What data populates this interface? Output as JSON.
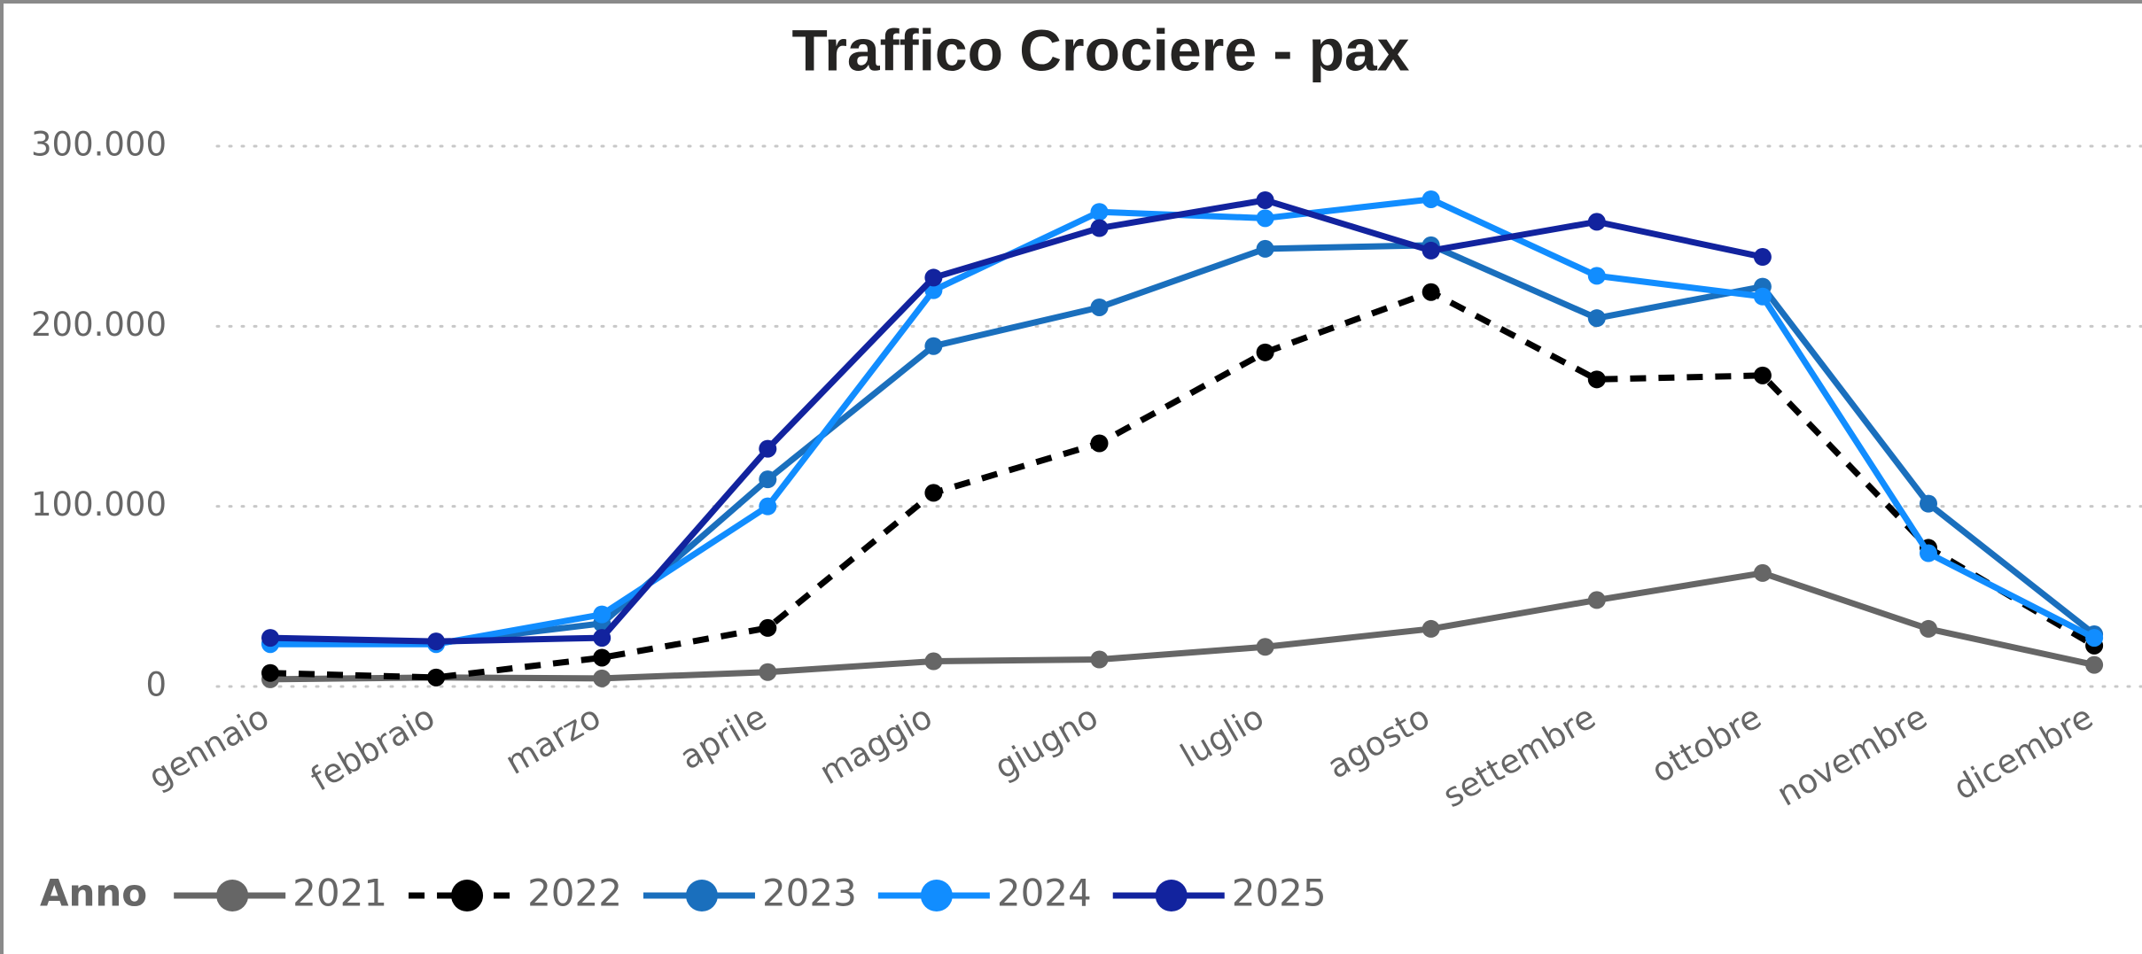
{
  "chart_data": {
    "type": "line",
    "title": "Traffico Crociere - pax",
    "categories": [
      "gennaio",
      "febbraio",
      "marzo",
      "aprile",
      "maggio",
      "giugno",
      "luglio",
      "agosto",
      "settembre",
      "ottobre",
      "novembre",
      "dicembre"
    ],
    "legend_title": "Anno",
    "legend": "bottom-left",
    "grid": true,
    "ylim": [
      0,
      300000
    ],
    "yticks": [
      0,
      {
        "value": 100000,
        "label": "100.000"
      },
      {
        "value": 200000,
        "label": "200.000"
      },
      {
        "value": 300000,
        "label": "300.000"
      }
    ],
    "series": [
      {
        "name": "2021",
        "color": "#666666",
        "line_style": "solid",
        "values": [
          4000,
          5000,
          4500,
          8000,
          14000,
          15000,
          22000,
          32000,
          48000,
          63000,
          32000,
          12000
        ]
      },
      {
        "name": "2022",
        "color": "#000000",
        "line_style": "dashed",
        "values": [
          7500,
          5000,
          16000,
          32500,
          107500,
          135000,
          185500,
          219000,
          170500,
          172700,
          77000,
          22700
        ]
      },
      {
        "name": "2023",
        "color": "#1a6fbd",
        "line_style": "solid",
        "values": [
          24000,
          24000,
          35000,
          115000,
          189000,
          210500,
          243000,
          245000,
          204500,
          222000,
          101500,
          29000
        ]
      },
      {
        "name": "2024",
        "color": "#118dff",
        "line_style": "solid",
        "values": [
          23500,
          23500,
          40000,
          100000,
          220000,
          263500,
          260000,
          270500,
          228000,
          216500,
          74000,
          27000
        ]
      },
      {
        "name": "2025",
        "color": "#12239e",
        "line_style": "solid",
        "values": [
          27000,
          25000,
          27000,
          132000,
          227000,
          254500,
          270000,
          242000,
          258000,
          238500,
          null,
          null
        ]
      }
    ]
  }
}
